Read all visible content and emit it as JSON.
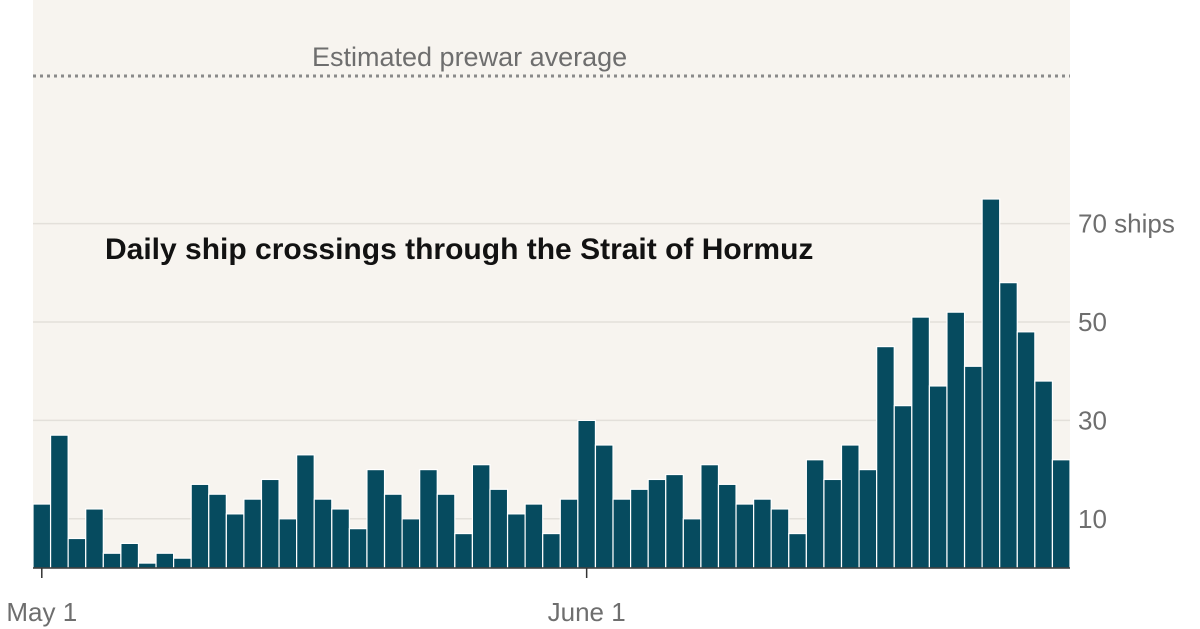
{
  "chart_data": {
    "type": "bar",
    "title": "Daily ship crossings through the Strait of Hormuz",
    "xlabel": "",
    "ylabel": "",
    "ylim": [
      0,
      110
    ],
    "x_ticks": [
      {
        "label": "May 1",
        "index": 0
      },
      {
        "label": "June 1",
        "index": 31
      }
    ],
    "y_ticks": [
      {
        "value": 10,
        "label": "10"
      },
      {
        "value": 30,
        "label": "30"
      },
      {
        "value": 50,
        "label": "50"
      },
      {
        "value": 70,
        "label": "70 ships"
      }
    ],
    "reference_line": {
      "label": "Estimated prewar average",
      "value": 100
    },
    "values": [
      13,
      27,
      6,
      12,
      3,
      5,
      1,
      3,
      2,
      17,
      15,
      11,
      14,
      18,
      10,
      23,
      14,
      12,
      8,
      20,
      15,
      10,
      20,
      15,
      7,
      21,
      16,
      11,
      13,
      7,
      14,
      30,
      25,
      14,
      16,
      18,
      19,
      10,
      21,
      17,
      13,
      14,
      12,
      7,
      22,
      18,
      25,
      20,
      45,
      33,
      51,
      37,
      52,
      41,
      75,
      58,
      48,
      38,
      22
    ],
    "grid": true,
    "colors": {
      "bar": "#064b5f",
      "background": "#f7f4ef",
      "grid": "#e3e0da",
      "reference": "#8a8a8a"
    }
  }
}
